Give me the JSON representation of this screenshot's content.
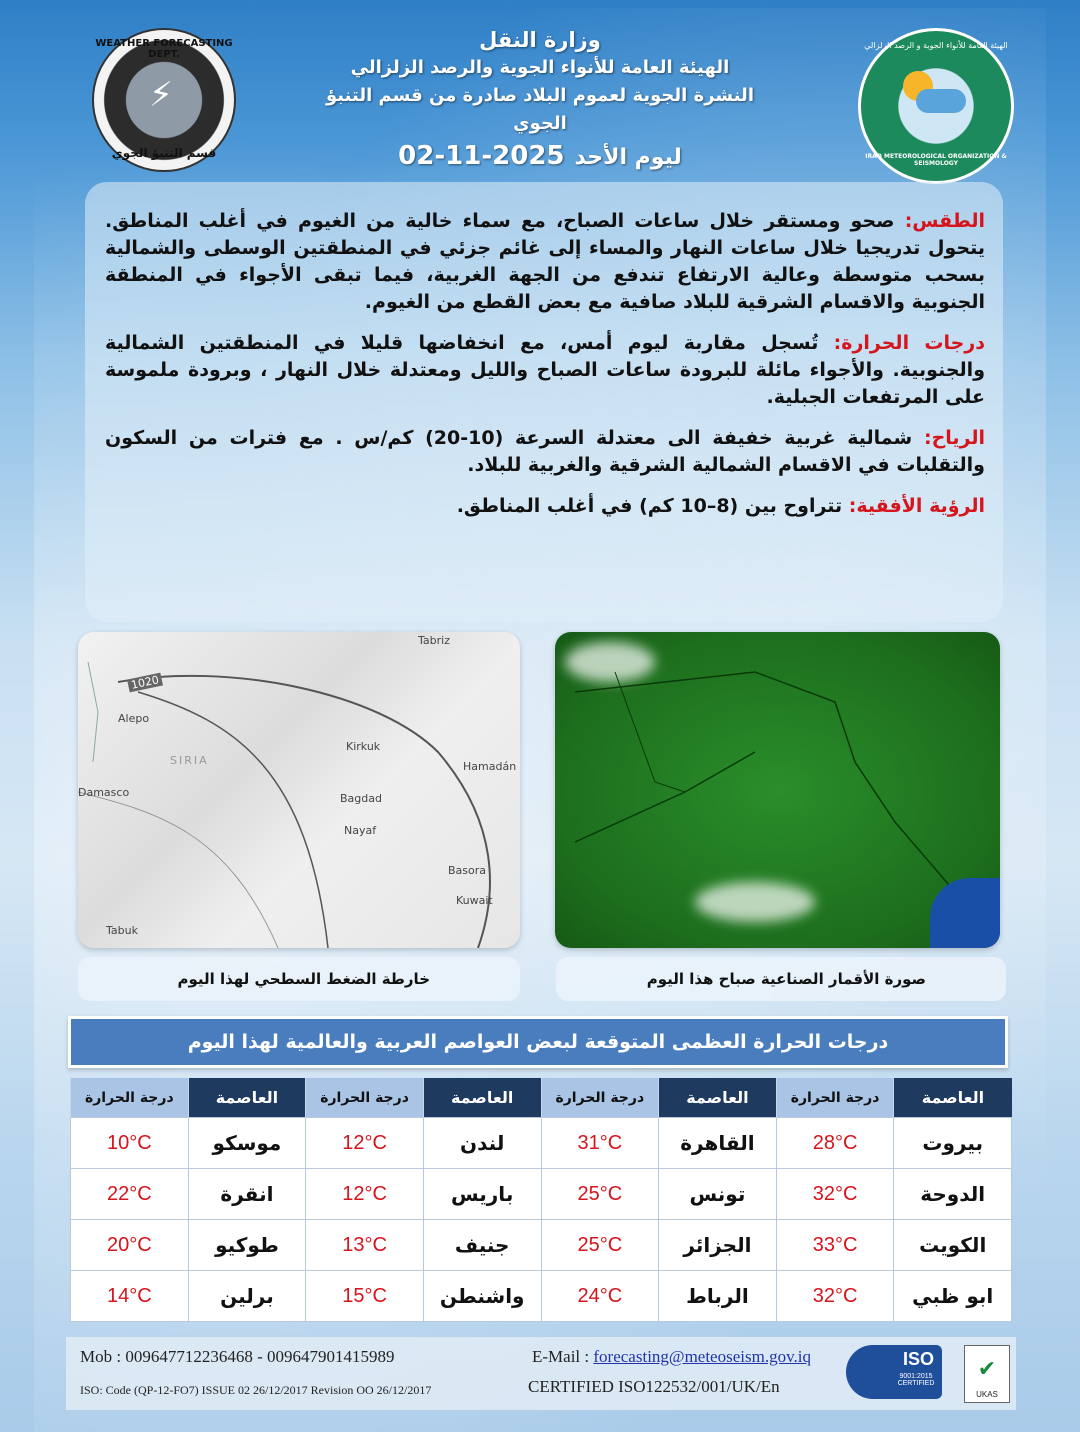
{
  "header": {
    "ministry": "وزارة النقل",
    "organization": "الهيئة العامة للأنواء الجوية والرصد الزلزالي",
    "bulletin": "النشرة الجوية لعموم البلاد صادرة من قسم التنبؤ الجوي",
    "day_label": "ليوم   الأحد",
    "date": "2025-11-02"
  },
  "logos": {
    "left_ring": "WEATHER FORECASTING DEPT.",
    "left_bottom": "قسم التنبؤ الجوي",
    "right_top": "الهيئة العامة للأنواء الجوية و الرصد الزلزالي",
    "right_bottom": "IRAQ METEOROLOGICAL ORGANIZATION & SEISMOLOGY"
  },
  "forecast": [
    {
      "key": "الطقس:",
      "text": " صحو ومستقر خلال ساعات الصباح، مع سماء خالية من الغيوم في أغلب المناطق. يتحول تدريجيا خلال ساعات النهار والمساء إلى غائم جزئي في المنطقتين الوسطى والشمالية بسحب متوسطة وعالية الارتفاع تندفع من الجهة الغربية، فيما تبقى الأجواء في المنطقة الجنوبية والاقسام الشرقية للبلاد صافية مع بعض القطع من الغيوم."
    },
    {
      "key": "درجات الحرارة:",
      "text": " تُسجل مقاربة ليوم أمس، مع انخفاضها قليلا في المنطقتين الشمالية والجنوبية. والأجواء مائلة للبرودة ساعات الصباح والليل ومعتدلة خلال النهار ، وبرودة ملموسة على المرتفعات الجبلية."
    },
    {
      "key": "الرياح:",
      "text": " شمالية غربية خفيفة الى معتدلة السرعة (10-20) كم/س . مع فترات من السكون والتقلبات في الاقسام الشمالية الشرقية والغربية للبلاد."
    },
    {
      "key": "الرؤية الأفقية:",
      "text": " تتراوح بين (8–10 كم) في أغلب المناطق."
    }
  ],
  "maps": {
    "pressure_labels": [
      "Tabriz",
      "1020",
      "Alepo",
      "Kirkuk",
      "SIRIA",
      "Hamadán",
      "Damasco",
      "Bagdad",
      "Nayaf",
      "Basora",
      "Kuwait",
      "Tabuk"
    ],
    "pressure_caption": "خارطة الضغط السطحي لهذا اليوم",
    "satellite_caption": "صورة الأقمار الصناعية صباح هذا اليوم"
  },
  "table": {
    "title": "درجات الحرارة العظمى المتوقعة لبعض العواصم العربية والعالمية لهذا اليوم",
    "city_header": "العاصمة",
    "temp_header": "درجة الحرارة",
    "rows": [
      [
        {
          "city": "بيروت",
          "temp": "28°C"
        },
        {
          "city": "القاهرة",
          "temp": "31°C"
        },
        {
          "city": "لندن",
          "temp": "12°C"
        },
        {
          "city": "موسكو",
          "temp": "10°C"
        }
      ],
      [
        {
          "city": "الدوحة",
          "temp": "32°C"
        },
        {
          "city": "تونس",
          "temp": "25°C"
        },
        {
          "city": "باريس",
          "temp": "12°C"
        },
        {
          "city": "انقرة",
          "temp": "22°C"
        }
      ],
      [
        {
          "city": "الكويت",
          "temp": "33°C"
        },
        {
          "city": "الجزائر",
          "temp": "25°C"
        },
        {
          "city": "جنيف",
          "temp": "13°C"
        },
        {
          "city": "طوكيو",
          "temp": "20°C"
        }
      ],
      [
        {
          "city": "ابو ظبي",
          "temp": "32°C"
        },
        {
          "city": "الرباط",
          "temp": "24°C"
        },
        {
          "city": "واشنطن",
          "temp": "15°C"
        },
        {
          "city": "برلين",
          "temp": "14°C"
        }
      ]
    ]
  },
  "footer": {
    "mobile": "Mob : 009647712236468 - 009647901415989",
    "email_label": "E-Mail : ",
    "email": "forecasting@meteoseism.gov.iq",
    "iso_code": "ISO: Code (QP-12-FO7)  ISSUE 02  26/12/2017 Revision  OO  26/12/2017",
    "certified": "CERTIFIED ISO122532/001/UK/En",
    "iso_badge": "ISO",
    "iso_badge_sub": "9001:2015 CERTIFIED",
    "ukas": "UKAS"
  },
  "colors": {
    "accent_red": "#d6141c",
    "title_bar": "#4a7dbd",
    "header_dark": "#1f3a5f",
    "header_light": "#a9c4e4"
  }
}
